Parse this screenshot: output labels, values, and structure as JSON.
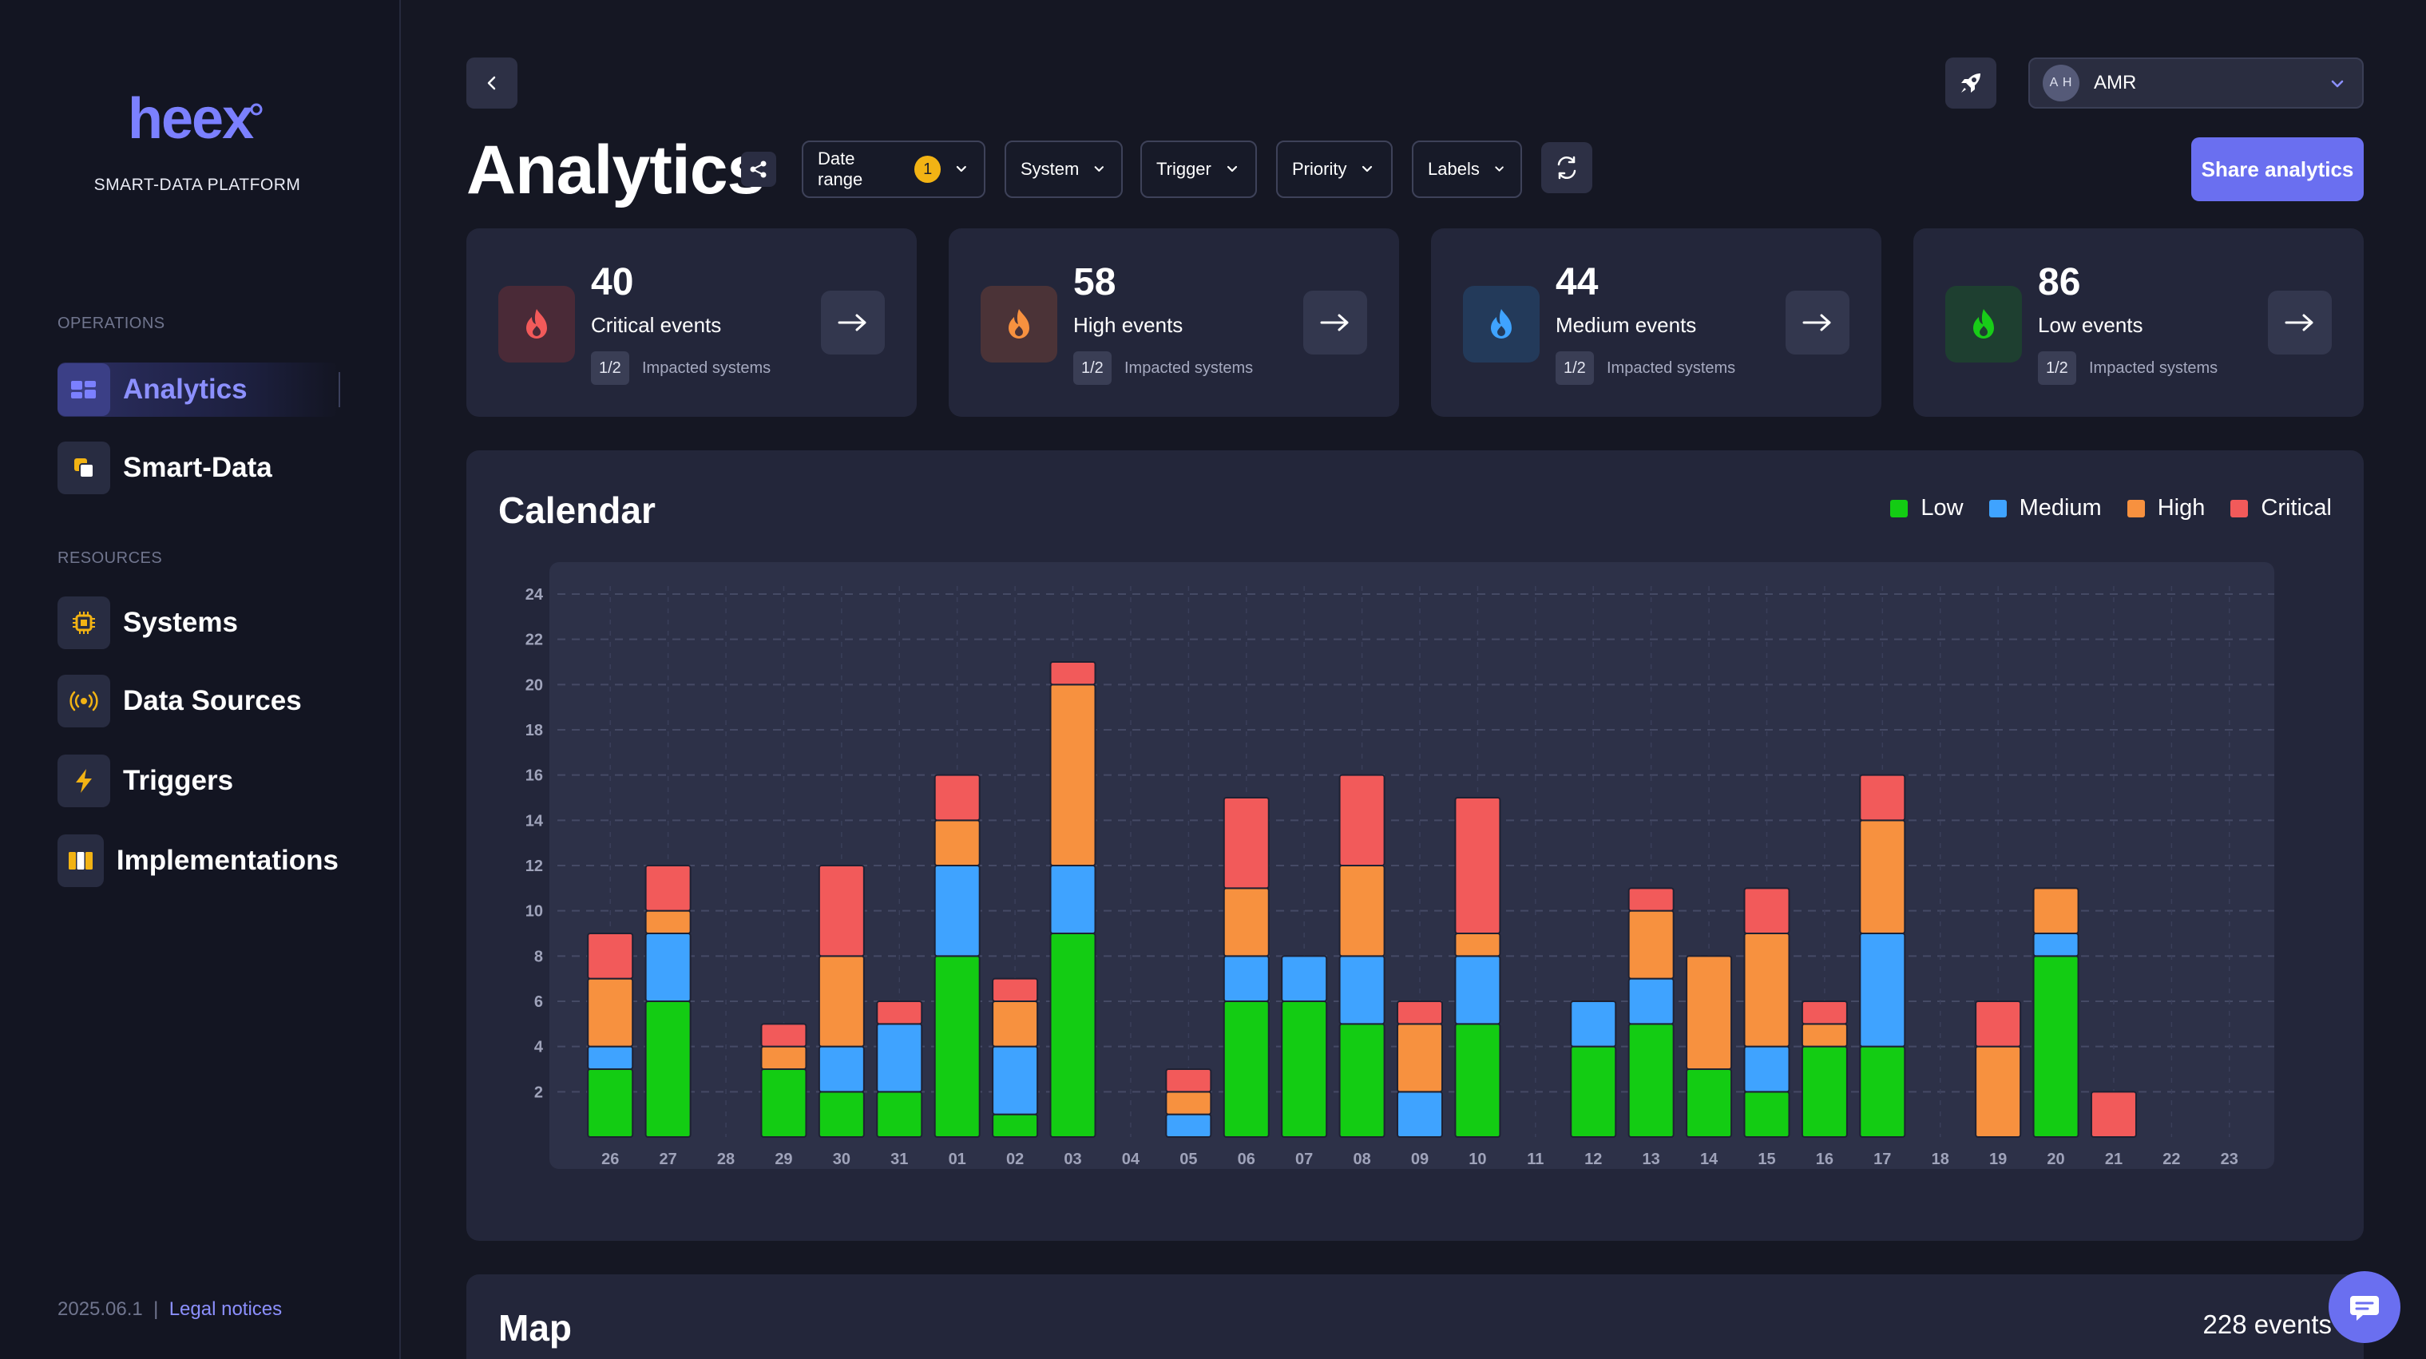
{
  "sidebar": {
    "logo": "heex",
    "tagline": "SMART-DATA PLATFORM",
    "sections": {
      "operations": "OPERATIONS",
      "resources": "RESOURCES"
    },
    "items": [
      {
        "label": "Analytics",
        "icon": "dashboard-icon",
        "active": true
      },
      {
        "label": "Smart-Data",
        "icon": "copy-icon"
      },
      {
        "label": "Systems",
        "icon": "cpu-chip-icon"
      },
      {
        "label": "Data Sources",
        "icon": "broadcast-icon"
      },
      {
        "label": "Triggers",
        "icon": "lightning-icon"
      },
      {
        "label": "Implementations",
        "icon": "columns-icon"
      }
    ],
    "version": "2025.06.1",
    "separator": "|",
    "legal": "Legal notices"
  },
  "header": {
    "title": "Analytics",
    "user": {
      "initials": "A H",
      "name": "AMR"
    },
    "share_label": "Share analytics"
  },
  "filters": [
    {
      "label": "Date range",
      "badge": "1"
    },
    {
      "label": "System"
    },
    {
      "label": "Trigger"
    },
    {
      "label": "Priority"
    },
    {
      "label": "Labels"
    }
  ],
  "cards": [
    {
      "value": "40",
      "label": "Critical events",
      "fraction": "1/2",
      "sub": "Impacted systems",
      "color": "#f25a5a",
      "bg": "#4a2a37"
    },
    {
      "value": "58",
      "label": "High events",
      "fraction": "1/2",
      "sub": "Impacted systems",
      "color": "#f7913f",
      "bg": "#4b3337"
    },
    {
      "value": "44",
      "label": "Medium events",
      "fraction": "1/2",
      "sub": "Impacted systems",
      "color": "#3fa3ff",
      "bg": "#233a5a"
    },
    {
      "value": "86",
      "label": "Low events",
      "fraction": "1/2",
      "sub": "Impacted systems",
      "color": "#18cc18",
      "bg": "#1e3f30"
    }
  ],
  "calendar": {
    "title": "Calendar",
    "legend": [
      {
        "name": "Low",
        "color": "#13cc13"
      },
      {
        "name": "Medium",
        "color": "#3fa3ff"
      },
      {
        "name": "High",
        "color": "#f7913f"
      },
      {
        "name": "Critical",
        "color": "#f25a5a"
      }
    ]
  },
  "chart_data": {
    "type": "bar",
    "stacked": true,
    "categories": [
      "26",
      "27",
      "28",
      "29",
      "30",
      "31",
      "01",
      "02",
      "03",
      "04",
      "05",
      "06",
      "07",
      "08",
      "09",
      "10",
      "11",
      "12",
      "13",
      "14",
      "15",
      "16",
      "17",
      "18",
      "19",
      "20",
      "21",
      "22",
      "23"
    ],
    "series": [
      {
        "name": "Low",
        "color": "#13cc13",
        "values": [
          3,
          6,
          0,
          3,
          2,
          2,
          8,
          1,
          9,
          0,
          0,
          6,
          6,
          5,
          0,
          5,
          0,
          4,
          5,
          3,
          2,
          4,
          4,
          0,
          0,
          8,
          0,
          0,
          0
        ]
      },
      {
        "name": "Medium",
        "color": "#3fa3ff",
        "values": [
          1,
          3,
          0,
          0,
          2,
          3,
          4,
          3,
          3,
          0,
          1,
          2,
          2,
          3,
          2,
          3,
          0,
          2,
          2,
          0,
          2,
          0,
          5,
          0,
          0,
          1,
          0,
          0,
          0
        ]
      },
      {
        "name": "High",
        "color": "#f7913f",
        "values": [
          3,
          1,
          0,
          1,
          4,
          0,
          2,
          2,
          8,
          0,
          1,
          3,
          0,
          4,
          3,
          1,
          0,
          0,
          3,
          5,
          5,
          1,
          5,
          0,
          4,
          2,
          0,
          0,
          0
        ]
      },
      {
        "name": "Critical",
        "color": "#f25a5a",
        "values": [
          2,
          2,
          0,
          1,
          4,
          1,
          2,
          1,
          1,
          0,
          1,
          4,
          0,
          4,
          1,
          6,
          0,
          0,
          1,
          0,
          2,
          1,
          2,
          0,
          2,
          0,
          2,
          0,
          0
        ]
      }
    ],
    "yticks": [
      2,
      4,
      6,
      8,
      10,
      12,
      14,
      16,
      18,
      20,
      22,
      24
    ],
    "ylim": [
      0,
      24
    ],
    "grid": true
  },
  "map": {
    "title": "Map",
    "count": "228 events"
  }
}
